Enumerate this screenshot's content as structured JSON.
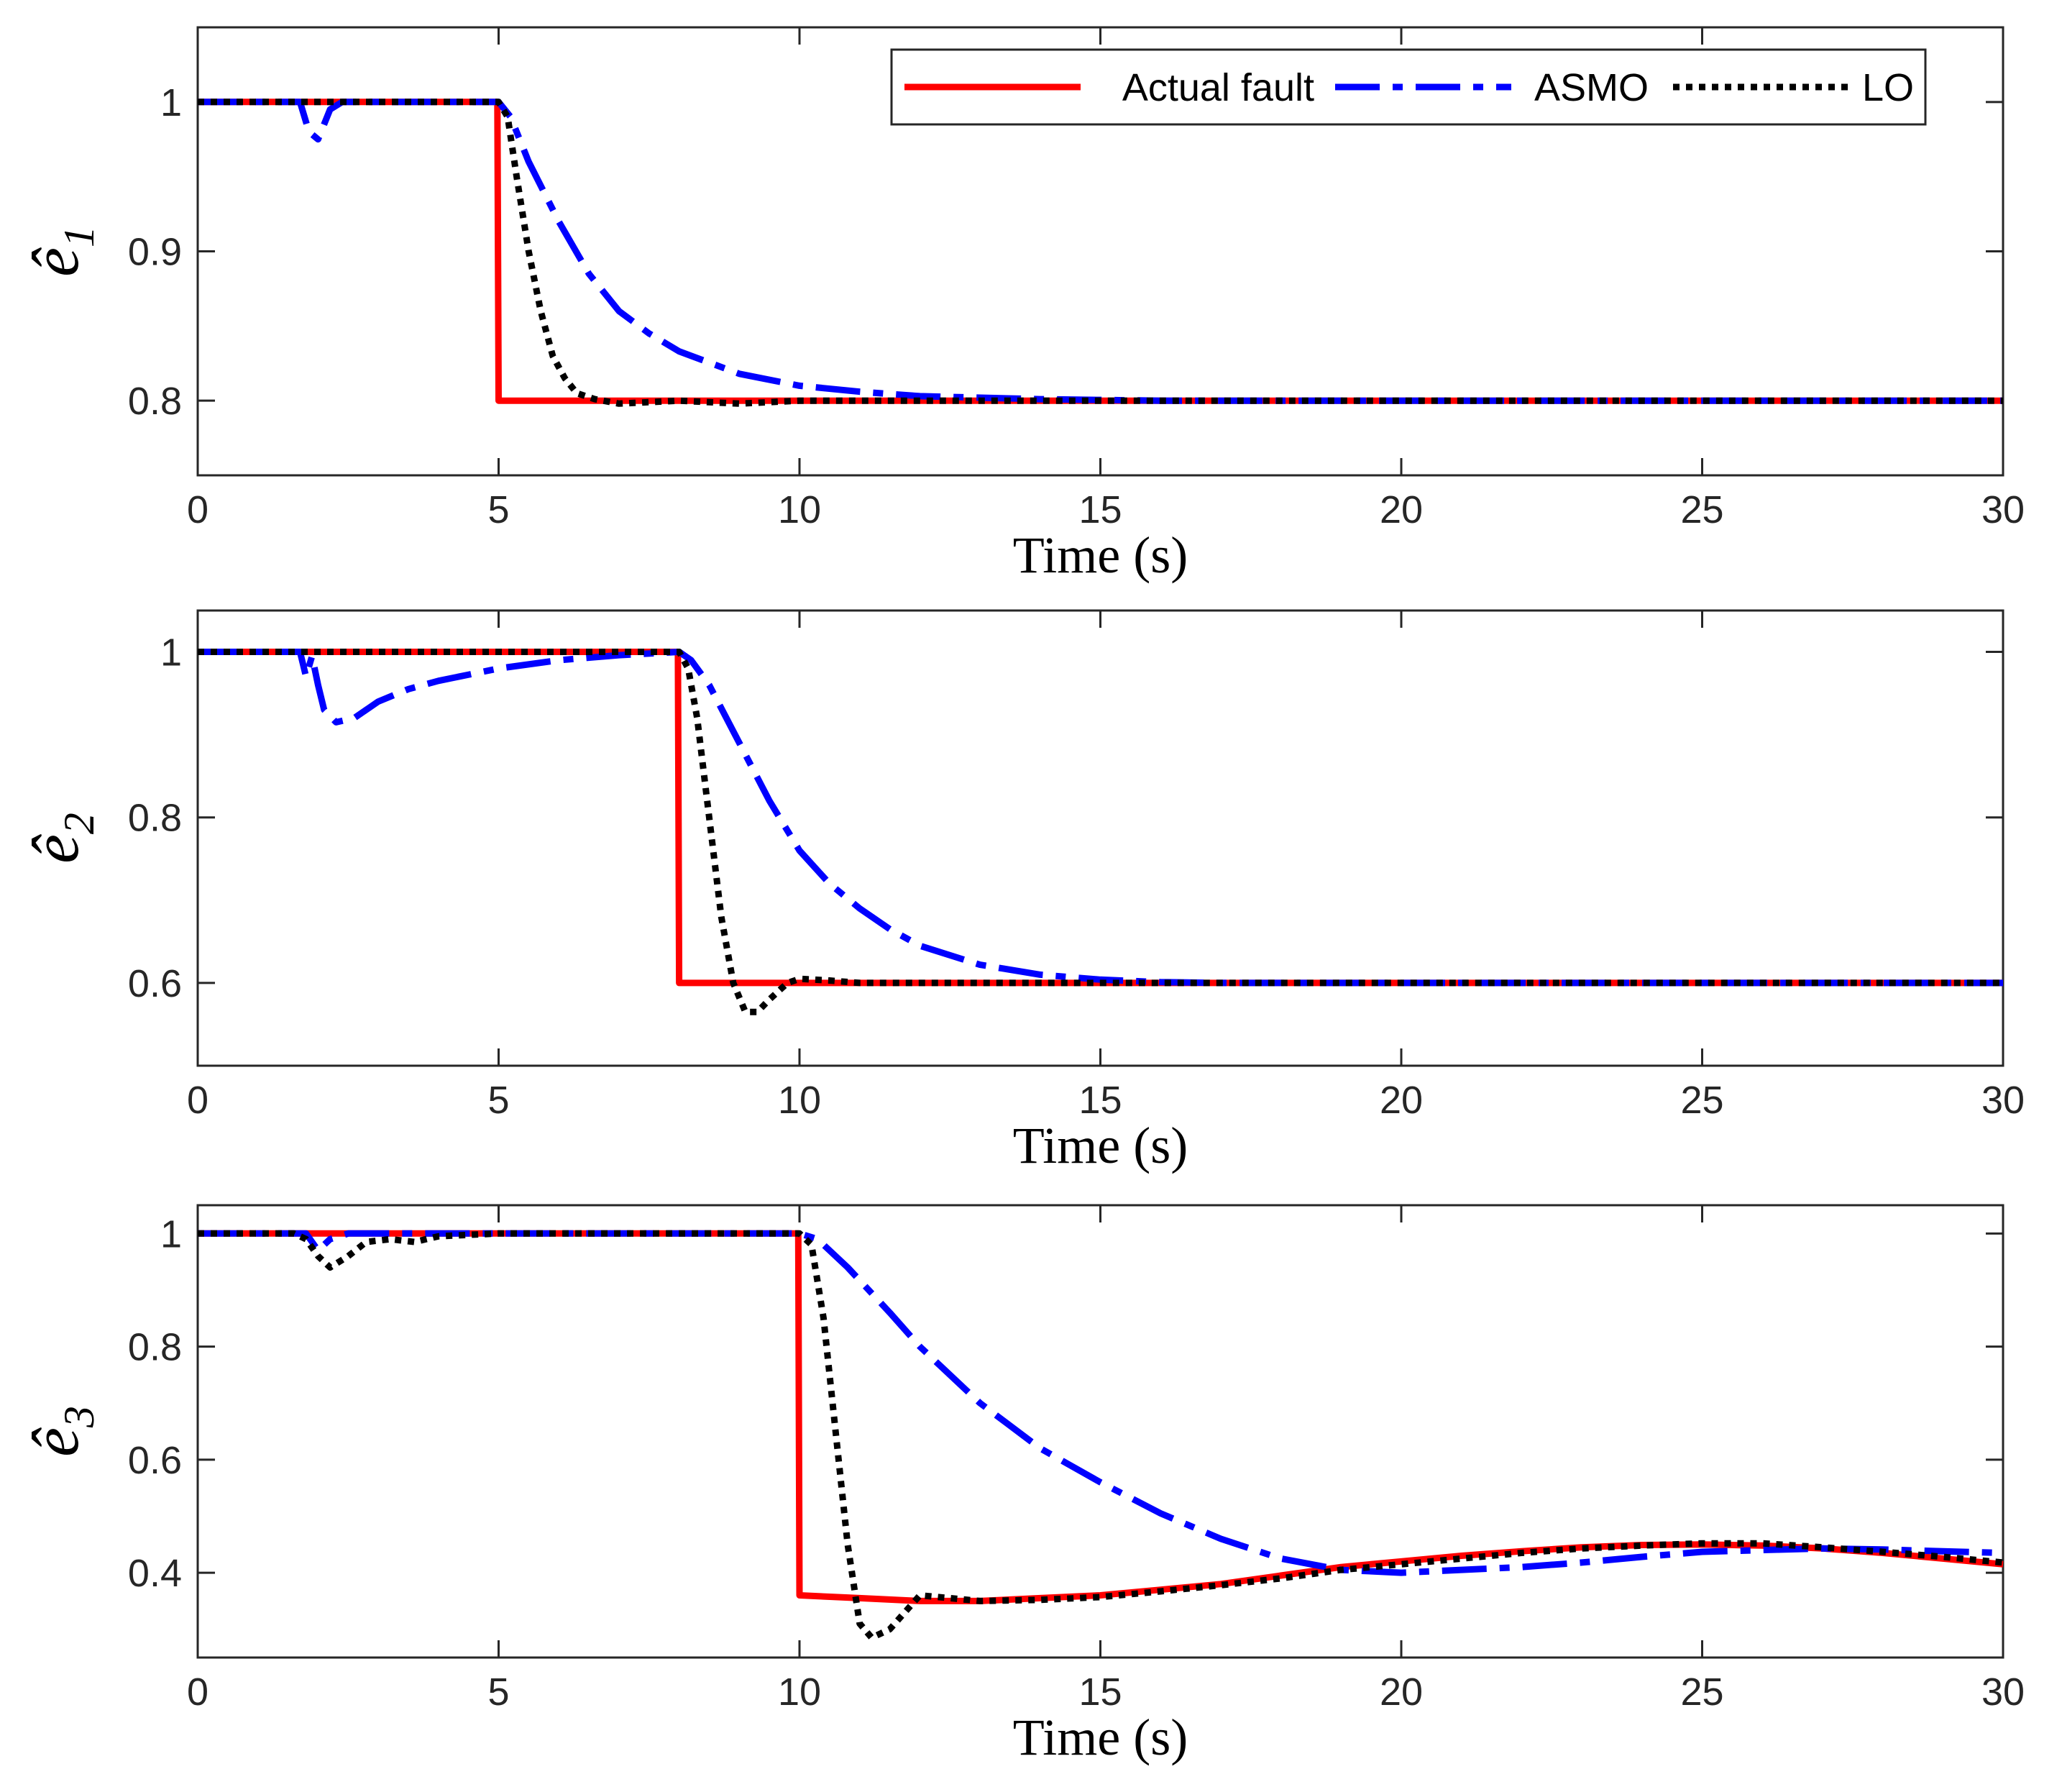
{
  "chart_data": [
    {
      "type": "line",
      "title": "",
      "xlabel": "Time (s)",
      "ylabel": "ê",
      "ylabel_subscript": "1",
      "xlim": [
        0,
        30
      ],
      "ylim": [
        0.75,
        1.05
      ],
      "xticks": [
        0,
        5,
        10,
        15,
        20,
        25,
        30
      ],
      "yticks": [
        0.8,
        0.9,
        1
      ],
      "ytick_labels": [
        "0.8",
        "0.9",
        "1"
      ],
      "grid": false,
      "legend": {
        "location": "top-right",
        "entries": [
          "Actual fault",
          "ASMO",
          "LO"
        ]
      },
      "series": [
        {
          "name": "Actual fault",
          "color": "#ff0000",
          "style": "solid",
          "points": [
            [
              0,
              1
            ],
            [
              4.98,
              1
            ],
            [
              5.0,
              0.8
            ],
            [
              30,
              0.8
            ]
          ]
        },
        {
          "name": "ASMO",
          "color": "#0000ff",
          "style": "dashdot",
          "points": [
            [
              0,
              1
            ],
            [
              1.7,
              1
            ],
            [
              1.85,
              0.98
            ],
            [
              2.0,
              0.975
            ],
            [
              2.2,
              0.995
            ],
            [
              2.4,
              1
            ],
            [
              5.0,
              1
            ],
            [
              5.2,
              0.99
            ],
            [
              5.5,
              0.96
            ],
            [
              6.0,
              0.92
            ],
            [
              6.5,
              0.885
            ],
            [
              7.0,
              0.86
            ],
            [
              7.5,
              0.845
            ],
            [
              8.0,
              0.833
            ],
            [
              9.0,
              0.818
            ],
            [
              10.0,
              0.81
            ],
            [
              11.0,
              0.806
            ],
            [
              12.0,
              0.803
            ],
            [
              13.0,
              0.802
            ],
            [
              14.0,
              0.801
            ],
            [
              16.0,
              0.8
            ],
            [
              30,
              0.8
            ]
          ]
        },
        {
          "name": "LO",
          "color": "#000000",
          "style": "dotted",
          "points": [
            [
              0,
              1
            ],
            [
              5.0,
              1
            ],
            [
              5.15,
              0.99
            ],
            [
              5.3,
              0.95
            ],
            [
              5.5,
              0.9
            ],
            [
              5.7,
              0.86
            ],
            [
              5.9,
              0.83
            ],
            [
              6.1,
              0.815
            ],
            [
              6.3,
              0.805
            ],
            [
              6.6,
              0.801
            ],
            [
              7.0,
              0.798
            ],
            [
              8.0,
              0.8
            ],
            [
              9.0,
              0.798
            ],
            [
              10.0,
              0.8
            ],
            [
              30,
              0.8
            ]
          ]
        }
      ]
    },
    {
      "type": "line",
      "title": "",
      "xlabel": "Time (s)",
      "ylabel": "ê",
      "ylabel_subscript": "2",
      "xlim": [
        0,
        30
      ],
      "ylim": [
        0.5,
        1.05
      ],
      "xticks": [
        0,
        5,
        10,
        15,
        20,
        25,
        30
      ],
      "yticks": [
        0.6,
        0.8,
        1
      ],
      "ytick_labels": [
        "0.6",
        "0.8",
        "1"
      ],
      "grid": false,
      "series": [
        {
          "name": "Actual fault",
          "color": "#ff0000",
          "style": "solid",
          "points": [
            [
              0,
              1
            ],
            [
              7.98,
              1
            ],
            [
              8.0,
              0.6
            ],
            [
              30,
              0.6
            ]
          ]
        },
        {
          "name": "ASMO",
          "color": "#0000ff",
          "style": "dashdot",
          "points": [
            [
              0,
              1
            ],
            [
              1.7,
              1
            ],
            [
              1.8,
              0.97
            ],
            [
              1.9,
              0.995
            ],
            [
              2.0,
              0.96
            ],
            [
              2.1,
              0.93
            ],
            [
              2.3,
              0.915
            ],
            [
              2.6,
              0.92
            ],
            [
              3.0,
              0.94
            ],
            [
              3.5,
              0.955
            ],
            [
              4.0,
              0.965
            ],
            [
              5.0,
              0.98
            ],
            [
              6.0,
              0.99
            ],
            [
              7.0,
              0.996
            ],
            [
              8.0,
              1
            ],
            [
              8.2,
              0.99
            ],
            [
              8.5,
              0.96
            ],
            [
              9.0,
              0.89
            ],
            [
              9.5,
              0.82
            ],
            [
              10.0,
              0.76
            ],
            [
              10.5,
              0.72
            ],
            [
              11.0,
              0.69
            ],
            [
              11.5,
              0.665
            ],
            [
              12.0,
              0.645
            ],
            [
              13.0,
              0.622
            ],
            [
              14.0,
              0.61
            ],
            [
              15.0,
              0.604
            ],
            [
              16.0,
              0.601
            ],
            [
              17.0,
              0.6
            ],
            [
              30,
              0.6
            ]
          ]
        },
        {
          "name": "LO",
          "color": "#000000",
          "style": "dotted",
          "points": [
            [
              0,
              1
            ],
            [
              8.0,
              1
            ],
            [
              8.15,
              0.98
            ],
            [
              8.3,
              0.92
            ],
            [
              8.5,
              0.8
            ],
            [
              8.7,
              0.68
            ],
            [
              8.9,
              0.6
            ],
            [
              9.1,
              0.565
            ],
            [
              9.3,
              0.565
            ],
            [
              9.5,
              0.58
            ],
            [
              9.8,
              0.6
            ],
            [
              10.0,
              0.605
            ],
            [
              10.5,
              0.603
            ],
            [
              11.0,
              0.6
            ],
            [
              30,
              0.6
            ]
          ]
        }
      ]
    },
    {
      "type": "line",
      "title": "",
      "xlabel": "Time (s)",
      "ylabel": "ê",
      "ylabel_subscript": "3",
      "xlim": [
        0,
        30
      ],
      "ylim": [
        0.25,
        1.05
      ],
      "xticks": [
        0,
        5,
        10,
        15,
        20,
        25,
        30
      ],
      "yticks": [
        0.4,
        0.6,
        0.8,
        1
      ],
      "ytick_labels": [
        "0.4",
        "0.6",
        "0.8",
        "1"
      ],
      "grid": false,
      "series": [
        {
          "name": "Actual fault",
          "color": "#ff0000",
          "style": "solid",
          "points": [
            [
              0,
              1
            ],
            [
              9.98,
              1
            ],
            [
              10.0,
              0.36
            ],
            [
              11.0,
              0.355
            ],
            [
              12.0,
              0.35
            ],
            [
              13.0,
              0.35
            ],
            [
              14.0,
              0.355
            ],
            [
              15.0,
              0.36
            ],
            [
              16.0,
              0.37
            ],
            [
              17.0,
              0.38
            ],
            [
              18.0,
              0.395
            ],
            [
              19.0,
              0.41
            ],
            [
              20.0,
              0.42
            ],
            [
              21.0,
              0.43
            ],
            [
              22.0,
              0.438
            ],
            [
              23.0,
              0.445
            ],
            [
              24.0,
              0.449
            ],
            [
              25.0,
              0.45
            ],
            [
              26.0,
              0.448
            ],
            [
              27.0,
              0.443
            ],
            [
              28.0,
              0.435
            ],
            [
              29.0,
              0.425
            ],
            [
              30.0,
              0.415
            ]
          ]
        },
        {
          "name": "ASMO",
          "color": "#0000ff",
          "style": "dashdot",
          "points": [
            [
              0,
              1
            ],
            [
              1.8,
              1
            ],
            [
              2.0,
              0.97
            ],
            [
              2.2,
              0.99
            ],
            [
              2.5,
              1
            ],
            [
              10.0,
              1
            ],
            [
              10.3,
              0.99
            ],
            [
              10.8,
              0.94
            ],
            [
              11.5,
              0.86
            ],
            [
              12.0,
              0.8
            ],
            [
              13.0,
              0.7
            ],
            [
              14.0,
              0.62
            ],
            [
              15.0,
              0.56
            ],
            [
              16.0,
              0.505
            ],
            [
              17.0,
              0.46
            ],
            [
              18.0,
              0.425
            ],
            [
              19.0,
              0.405
            ],
            [
              20.0,
              0.4
            ],
            [
              21.0,
              0.405
            ],
            [
              22.0,
              0.41
            ],
            [
              23.0,
              0.418
            ],
            [
              24.0,
              0.428
            ],
            [
              25.0,
              0.437
            ],
            [
              26.0,
              0.44
            ],
            [
              27.0,
              0.443
            ],
            [
              28.0,
              0.441
            ],
            [
              29.0,
              0.438
            ],
            [
              30.0,
              0.435
            ]
          ]
        },
        {
          "name": "LO",
          "color": "#000000",
          "style": "dotted",
          "points": [
            [
              0,
              1
            ],
            [
              1.6,
              1
            ],
            [
              1.8,
              0.99
            ],
            [
              2.0,
              0.96
            ],
            [
              2.2,
              0.94
            ],
            [
              2.5,
              0.96
            ],
            [
              2.8,
              0.985
            ],
            [
              3.2,
              0.99
            ],
            [
              3.6,
              0.985
            ],
            [
              4.0,
              0.995
            ],
            [
              5.0,
              1
            ],
            [
              10.0,
              1
            ],
            [
              10.2,
              0.98
            ],
            [
              10.4,
              0.85
            ],
            [
              10.6,
              0.65
            ],
            [
              10.8,
              0.45
            ],
            [
              11.0,
              0.31
            ],
            [
              11.2,
              0.285
            ],
            [
              11.5,
              0.3
            ],
            [
              12.0,
              0.36
            ],
            [
              12.5,
              0.355
            ],
            [
              13.0,
              0.35
            ],
            [
              14.0,
              0.352
            ],
            [
              15.0,
              0.357
            ],
            [
              16.0,
              0.367
            ],
            [
              17.0,
              0.378
            ],
            [
              18.0,
              0.39
            ],
            [
              19.0,
              0.405
            ],
            [
              20.0,
              0.415
            ],
            [
              21.0,
              0.425
            ],
            [
              22.0,
              0.435
            ],
            [
              23.0,
              0.443
            ],
            [
              24.0,
              0.448
            ],
            [
              25.0,
              0.452
            ],
            [
              26.0,
              0.452
            ],
            [
              27.0,
              0.445
            ],
            [
              28.0,
              0.437
            ],
            [
              29.0,
              0.428
            ],
            [
              30.0,
              0.418
            ]
          ]
        }
      ]
    }
  ]
}
